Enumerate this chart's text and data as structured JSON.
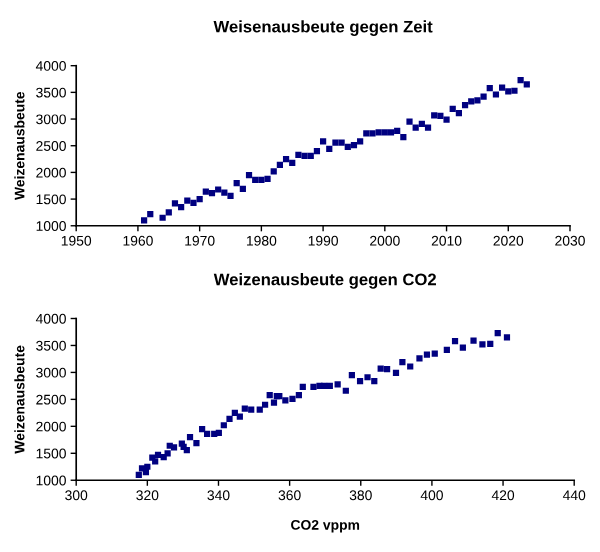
{
  "chart_data": [
    {
      "type": "scatter",
      "title": "Weisenausbeute gegen Zeit",
      "ylabel": "Weizenausbeute",
      "xlim": [
        1950,
        2030
      ],
      "xticks": [
        1950,
        1960,
        1970,
        1980,
        1990,
        2000,
        2010,
        2020,
        2030
      ],
      "ylim": [
        1000,
        4000
      ],
      "yticks": [
        1000,
        1500,
        2000,
        2500,
        3000,
        3500,
        4000
      ],
      "marker": "square",
      "grid": false,
      "legend": false,
      "series": [
        {
          "color": "#000080",
          "x": [
            1961,
            1962,
            1964,
            1965,
            1966,
            1967,
            1968,
            1969,
            1970,
            1971,
            1972,
            1973,
            1974,
            1975,
            1976,
            1977,
            1978,
            1979,
            1980,
            1981,
            1982,
            1983,
            1984,
            1985,
            1986,
            1987,
            1988,
            1989,
            1990,
            1991,
            1992,
            1993,
            1994,
            1995,
            1996,
            1997,
            1998,
            1999,
            2000,
            2001,
            2002,
            2003,
            2004,
            2005,
            2006,
            2007,
            2008,
            2009,
            2010,
            2011,
            2012,
            2013,
            2014,
            2015,
            2016,
            2017,
            2018,
            2019,
            2020,
            2021,
            2022,
            2023
          ],
          "values": [
            1100,
            1220,
            1150,
            1250,
            1420,
            1350,
            1470,
            1430,
            1500,
            1640,
            1610,
            1680,
            1620,
            1560,
            1800,
            1690,
            1950,
            1860,
            1860,
            1880,
            2020,
            2140,
            2250,
            2180,
            2330,
            2310,
            2310,
            2400,
            2580,
            2440,
            2560,
            2560,
            2480,
            2510,
            2580,
            2730,
            2730,
            2750,
            2750,
            2750,
            2780,
            2660,
            2950,
            2840,
            2910,
            2840,
            3070,
            3060,
            2990,
            3190,
            3110,
            3260,
            3330,
            3350,
            3420,
            3580,
            3460,
            3590,
            3520,
            3530,
            3730,
            3650
          ]
        }
      ]
    },
    {
      "type": "scatter",
      "title": "Weizenausbeute gegen CO2",
      "xlabel": "CO2 vppm",
      "ylabel": "Weizenausbeute",
      "xlim": [
        300,
        440
      ],
      "xticks": [
        300,
        320,
        340,
        360,
        380,
        400,
        420,
        440
      ],
      "ylim": [
        1000,
        4000
      ],
      "yticks": [
        1000,
        1500,
        2000,
        2500,
        3000,
        3500,
        4000
      ],
      "marker": "square",
      "grid": false,
      "legend": false,
      "series": [
        {
          "color": "#000080",
          "x": [
            317.6,
            318.5,
            319.6,
            320.0,
            321.4,
            322.2,
            323.0,
            324.6,
            325.7,
            326.3,
            327.5,
            329.7,
            330.2,
            331.1,
            332.0,
            333.8,
            335.4,
            336.8,
            338.8,
            340.1,
            341.5,
            343.1,
            344.6,
            346.0,
            347.4,
            349.2,
            351.6,
            353.1,
            354.4,
            355.6,
            356.4,
            357.1,
            358.8,
            360.8,
            362.6,
            363.7,
            366.7,
            368.4,
            369.7,
            371.3,
            373.5,
            375.8,
            377.5,
            379.8,
            381.9,
            383.8,
            385.6,
            387.4,
            389.9,
            391.7,
            393.9,
            396.5,
            398.6,
            400.8,
            404.2,
            406.5,
            408.7,
            411.7,
            414.2,
            416.4,
            418.5,
            421.1
          ],
          "values": [
            1100,
            1220,
            1150,
            1250,
            1420,
            1350,
            1470,
            1430,
            1500,
            1640,
            1610,
            1680,
            1620,
            1560,
            1800,
            1690,
            1950,
            1860,
            1860,
            1880,
            2020,
            2140,
            2250,
            2180,
            2330,
            2310,
            2310,
            2400,
            2580,
            2440,
            2560,
            2560,
            2480,
            2510,
            2580,
            2730,
            2730,
            2750,
            2750,
            2750,
            2780,
            2660,
            2950,
            2840,
            2910,
            2840,
            3070,
            3060,
            2990,
            3190,
            3110,
            3260,
            3330,
            3350,
            3420,
            3580,
            3460,
            3590,
            3520,
            3530,
            3730,
            3650
          ]
        }
      ]
    }
  ]
}
